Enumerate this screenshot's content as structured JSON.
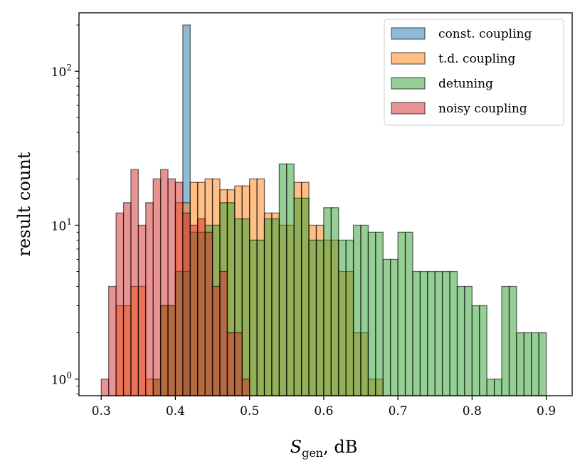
{
  "chart_data": {
    "type": "histogram",
    "scale": {
      "x": "linear",
      "y": "log"
    },
    "xlabel": "S",
    "xlabel_sub": "gen",
    "xlabel_suffix": ", dB",
    "ylabel": "result count",
    "xlim": [
      0.27,
      0.935
    ],
    "ylim": [
      0.78,
      240
    ],
    "xticks": [
      "0.3",
      "0.4",
      "0.5",
      "0.6",
      "0.7",
      "0.8",
      "0.9"
    ],
    "yticks": [
      {
        "base": "10",
        "exp": "0",
        "value": 1
      },
      {
        "base": "10",
        "exp": "1",
        "value": 10
      },
      {
        "base": "10",
        "exp": "2",
        "value": 100
      }
    ],
    "legend_position": "top-right",
    "series": [
      {
        "name": "const. coupling",
        "color": "#1f77b4",
        "bins": [
          [
            0.41,
            0.42,
            200
          ]
        ]
      },
      {
        "name": "t.d. coupling",
        "color": "#ff7f0e",
        "bins": [
          [
            0.32,
            0.33,
            3
          ],
          [
            0.33,
            0.34,
            3
          ],
          [
            0.34,
            0.35,
            4
          ],
          [
            0.35,
            0.36,
            4
          ],
          [
            0.36,
            0.37,
            1
          ],
          [
            0.37,
            0.38,
            1
          ],
          [
            0.38,
            0.39,
            3
          ],
          [
            0.39,
            0.4,
            3
          ],
          [
            0.4,
            0.41,
            14
          ],
          [
            0.41,
            0.42,
            14
          ],
          [
            0.42,
            0.43,
            19
          ],
          [
            0.43,
            0.44,
            19
          ],
          [
            0.44,
            0.45,
            20
          ],
          [
            0.45,
            0.46,
            20
          ],
          [
            0.46,
            0.47,
            17
          ],
          [
            0.47,
            0.48,
            17
          ],
          [
            0.48,
            0.49,
            18
          ],
          [
            0.49,
            0.5,
            18
          ],
          [
            0.5,
            0.51,
            20
          ],
          [
            0.51,
            0.52,
            20
          ],
          [
            0.52,
            0.53,
            12
          ],
          [
            0.53,
            0.54,
            12
          ],
          [
            0.54,
            0.55,
            10
          ],
          [
            0.55,
            0.56,
            10
          ],
          [
            0.56,
            0.57,
            19
          ],
          [
            0.57,
            0.58,
            19
          ],
          [
            0.58,
            0.59,
            10
          ],
          [
            0.59,
            0.6,
            10
          ],
          [
            0.6,
            0.61,
            8
          ],
          [
            0.61,
            0.62,
            8
          ],
          [
            0.62,
            0.63,
            5
          ],
          [
            0.63,
            0.64,
            5
          ],
          [
            0.64,
            0.65,
            2
          ],
          [
            0.65,
            0.66,
            2
          ],
          [
            0.66,
            0.67,
            1
          ],
          [
            0.67,
            0.68,
            1
          ]
        ]
      },
      {
        "name": "detuning",
        "color": "#2ca02c",
        "bins": [
          [
            0.37,
            0.38,
            1
          ],
          [
            0.38,
            0.39,
            3
          ],
          [
            0.39,
            0.4,
            3
          ],
          [
            0.4,
            0.41,
            5
          ],
          [
            0.41,
            0.42,
            5
          ],
          [
            0.42,
            0.43,
            9
          ],
          [
            0.43,
            0.44,
            9
          ],
          [
            0.44,
            0.45,
            10
          ],
          [
            0.45,
            0.46,
            10
          ],
          [
            0.46,
            0.47,
            14
          ],
          [
            0.47,
            0.48,
            14
          ],
          [
            0.48,
            0.49,
            11
          ],
          [
            0.49,
            0.5,
            11
          ],
          [
            0.5,
            0.51,
            8
          ],
          [
            0.51,
            0.52,
            8
          ],
          [
            0.52,
            0.53,
            11
          ],
          [
            0.53,
            0.54,
            11
          ],
          [
            0.54,
            0.55,
            25
          ],
          [
            0.55,
            0.56,
            25
          ],
          [
            0.56,
            0.57,
            15
          ],
          [
            0.57,
            0.58,
            15
          ],
          [
            0.58,
            0.59,
            8
          ],
          [
            0.59,
            0.6,
            8
          ],
          [
            0.6,
            0.61,
            13
          ],
          [
            0.61,
            0.62,
            13
          ],
          [
            0.62,
            0.63,
            8
          ],
          [
            0.63,
            0.64,
            8
          ],
          [
            0.64,
            0.65,
            10
          ],
          [
            0.65,
            0.66,
            10
          ],
          [
            0.66,
            0.67,
            9
          ],
          [
            0.67,
            0.68,
            9
          ],
          [
            0.68,
            0.69,
            6
          ],
          [
            0.69,
            0.7,
            6
          ],
          [
            0.7,
            0.71,
            9
          ],
          [
            0.71,
            0.72,
            9
          ],
          [
            0.72,
            0.73,
            5
          ],
          [
            0.73,
            0.74,
            5
          ],
          [
            0.74,
            0.75,
            5
          ],
          [
            0.75,
            0.76,
            5
          ],
          [
            0.76,
            0.77,
            5
          ],
          [
            0.77,
            0.78,
            5
          ],
          [
            0.78,
            0.79,
            4
          ],
          [
            0.79,
            0.8,
            4
          ],
          [
            0.8,
            0.81,
            3
          ],
          [
            0.81,
            0.82,
            3
          ],
          [
            0.82,
            0.83,
            1
          ],
          [
            0.83,
            0.84,
            1
          ],
          [
            0.84,
            0.85,
            4
          ],
          [
            0.85,
            0.86,
            4
          ],
          [
            0.86,
            0.87,
            2
          ],
          [
            0.87,
            0.88,
            2
          ],
          [
            0.88,
            0.89,
            2
          ],
          [
            0.89,
            0.9,
            2
          ]
        ]
      },
      {
        "name": "noisy coupling",
        "color": "#d62728",
        "bins": [
          [
            0.3,
            0.31,
            1
          ],
          [
            0.31,
            0.32,
            4
          ],
          [
            0.32,
            0.33,
            12
          ],
          [
            0.33,
            0.34,
            14
          ],
          [
            0.34,
            0.35,
            23
          ],
          [
            0.35,
            0.36,
            10
          ],
          [
            0.36,
            0.37,
            14
          ],
          [
            0.37,
            0.38,
            20
          ],
          [
            0.38,
            0.39,
            23
          ],
          [
            0.39,
            0.4,
            20
          ],
          [
            0.4,
            0.41,
            19
          ],
          [
            0.41,
            0.42,
            12
          ],
          [
            0.42,
            0.43,
            10
          ],
          [
            0.43,
            0.44,
            11
          ],
          [
            0.44,
            0.45,
            9
          ],
          [
            0.45,
            0.46,
            4
          ],
          [
            0.46,
            0.47,
            5
          ],
          [
            0.47,
            0.48,
            2
          ],
          [
            0.48,
            0.49,
            2
          ],
          [
            0.49,
            0.5,
            1
          ]
        ]
      }
    ]
  }
}
